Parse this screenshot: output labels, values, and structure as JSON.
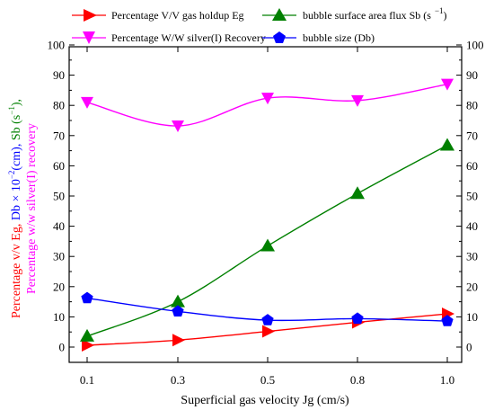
{
  "chart_data": {
    "type": "line",
    "categories": [
      "0.1",
      "0.3",
      "0.5",
      "0.8",
      "1.0"
    ],
    "xlabel": "Superficial gas velocity Jg (cm/s)",
    "ylabel_left": {
      "line1_part1": "Percentage  v/v Eg, ",
      "line1_part2": "Db × 10",
      "line1_sup1": "−2",
      "line1_part3": "(cm), ",
      "line1_part4": "Sb (s",
      "line1_sup2": "−1",
      "line1_part5": "),",
      "line2": "Percentage w/w silver(I) recovery"
    },
    "ylim": [
      0,
      100
    ],
    "yticks": [
      "0",
      "10",
      "20",
      "30",
      "40",
      "50",
      "60",
      "70",
      "80",
      "90",
      "100"
    ],
    "grid": false,
    "legend_placement": "top",
    "series": [
      {
        "name": "Percentage V/V gas holdup Eg",
        "color": "#ff0000",
        "marker": "triangle-right",
        "values": [
          0.6,
          2.3,
          5.2,
          8.2,
          11.0
        ]
      },
      {
        "name": "bubble surface area flux Sb (s −1)",
        "legend_main": "bubble surface area flux Sb (s",
        "legend_sup": "−1",
        "legend_close": ")",
        "color": "#008000",
        "marker": "triangle-up",
        "values": [
          3.6,
          15.0,
          33.5,
          50.8,
          66.8
        ]
      },
      {
        "name": "Percentage W/W silver(I) Recovery",
        "color": "#ff00ff",
        "marker": "triangle-down",
        "values": [
          81.0,
          73.2,
          82.4,
          81.6,
          87.0
        ]
      },
      {
        "name": "bubble size (Db)",
        "color": "#0000ff",
        "marker": "pentagon",
        "values": [
          16.2,
          11.8,
          8.9,
          9.4,
          8.6
        ]
      }
    ]
  }
}
